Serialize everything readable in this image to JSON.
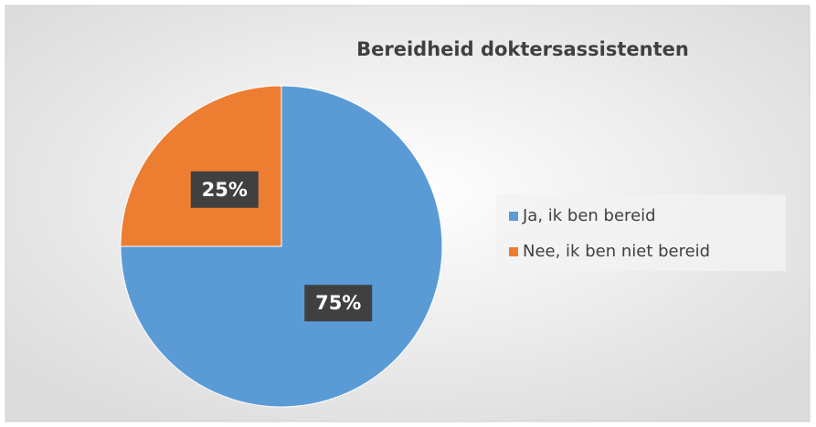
{
  "chart_data": {
    "type": "pie",
    "title": "Bereidheid doktersassistenten",
    "categories": [
      "Ja, ik ben bereid",
      "Nee, ik ben niet bereid"
    ],
    "values": [
      75,
      25
    ],
    "value_labels": [
      "75%",
      "25%"
    ],
    "colors": [
      "#5b9bd5",
      "#ed7d31"
    ],
    "legend": "right"
  }
}
